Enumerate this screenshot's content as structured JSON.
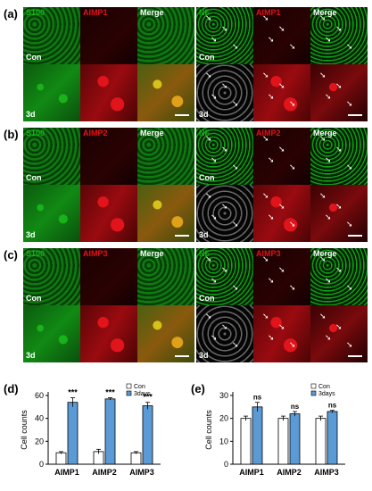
{
  "panels": [
    {
      "label": "(a)",
      "marker": "AIMP1"
    },
    {
      "label": "(b)",
      "marker": "AIMP2"
    },
    {
      "label": "(c)",
      "marker": "AIMP3"
    }
  ],
  "channel_labels": {
    "s100": "S100",
    "nf": "NF",
    "merge": "Merge"
  },
  "conditions": {
    "con": "Con",
    "d3": "3d"
  },
  "colors": {
    "green": "#18b31a",
    "red": "#e0141a",
    "white": "#ffffff",
    "bar_fill": "#5b9bd5"
  },
  "charts": [
    {
      "label": "(d)"
    },
    {
      "label": "(e)"
    }
  ],
  "chart_data": [
    {
      "type": "bar",
      "categories": [
        "AIMP1",
        "AIMP2",
        "AIMP3"
      ],
      "series": [
        {
          "name": "Con",
          "values": [
            10,
            11,
            10
          ],
          "errors": [
            1,
            2,
            1
          ]
        },
        {
          "name": "3days",
          "values": [
            54,
            57,
            51
          ],
          "errors": [
            4,
            1,
            3
          ]
        }
      ],
      "annotations": [
        "***",
        "***",
        "***"
      ],
      "ylabel": "Cell counts",
      "ylim": [
        0,
        60
      ],
      "yticks": [
        0,
        20,
        40,
        60
      ],
      "legend": "top-right"
    },
    {
      "type": "bar",
      "categories": [
        "AIMP1",
        "AIMP2",
        "AIMP3"
      ],
      "series": [
        {
          "name": "Con",
          "values": [
            20,
            20,
            20
          ],
          "errors": [
            1,
            1,
            1
          ]
        },
        {
          "name": "3days",
          "values": [
            25,
            22,
            23
          ],
          "errors": [
            2,
            1,
            0.5
          ]
        }
      ],
      "annotations": [
        "ns",
        "ns",
        "ns"
      ],
      "ylabel": "Cell counts",
      "ylim": [
        0,
        30
      ],
      "yticks": [
        0,
        10,
        20,
        30
      ],
      "legend": "top-right"
    }
  ]
}
